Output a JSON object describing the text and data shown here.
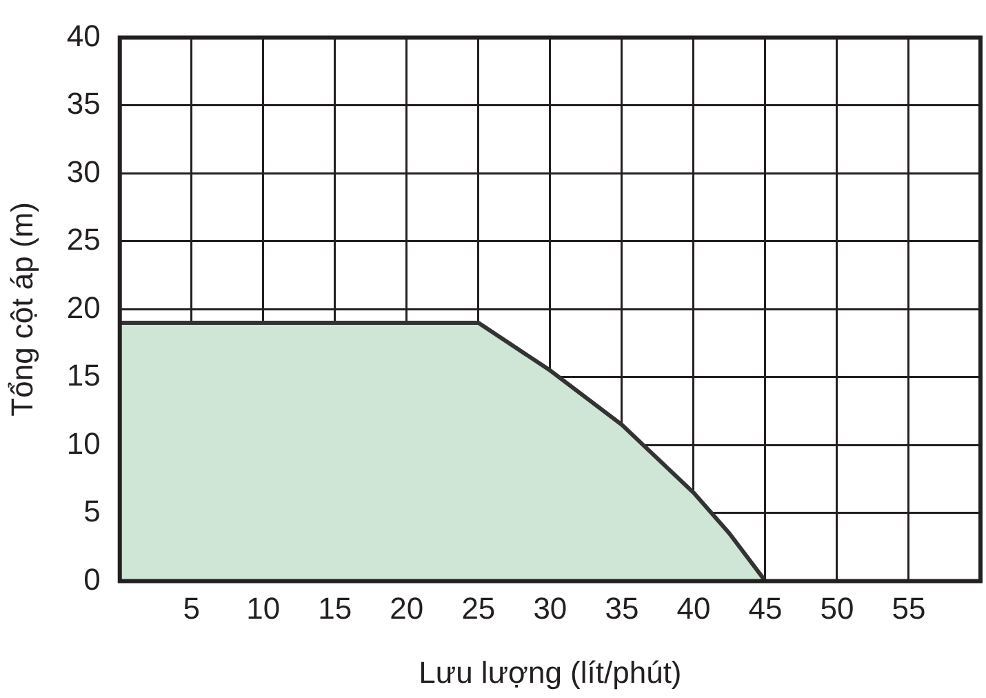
{
  "chart_data": {
    "type": "area",
    "xlabel": "Lưu lượng (lít/phút)",
    "ylabel": "Tổng cột áp (m)",
    "x": [
      0,
      25,
      30,
      35,
      40,
      42.5,
      45
    ],
    "series": [
      {
        "color": "#cfe6d6",
        "values": [
          19,
          19,
          15.5,
          11.5,
          6.5,
          3.5,
          0
        ]
      }
    ],
    "xlim": [
      0,
      60
    ],
    "xticks": [
      5,
      10,
      15,
      20,
      25,
      30,
      35,
      40,
      45,
      50,
      55
    ],
    "ylim": [
      0,
      40
    ],
    "yticks": [
      0,
      5,
      10,
      15,
      20,
      25,
      30,
      35,
      40
    ],
    "grid": true,
    "legend": false
  }
}
